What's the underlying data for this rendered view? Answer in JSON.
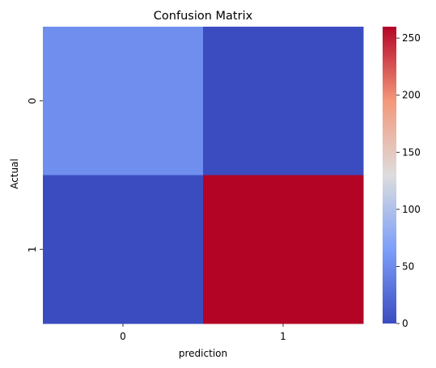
{
  "chart_data": {
    "type": "heatmap",
    "title": "Confusion Matrix",
    "xlabel": "prediction",
    "ylabel": "Actual",
    "x_categories": [
      "0",
      "1"
    ],
    "y_categories": [
      "0",
      "1"
    ],
    "values": [
      [
        52,
        0
      ],
      [
        0,
        260
      ]
    ],
    "colormap": "coolwarm",
    "vmin": 0,
    "vmax": 260,
    "colorbar_ticks": [
      0,
      50,
      100,
      150,
      200,
      250
    ],
    "colorbar_tick_labels": [
      "0",
      "50",
      "100",
      "150",
      "200",
      "250"
    ],
    "grid": false,
    "colorbar": "right",
    "colors": {
      "low": "#3b4cc0",
      "mid": "#dddddd",
      "high": "#b40426"
    }
  }
}
